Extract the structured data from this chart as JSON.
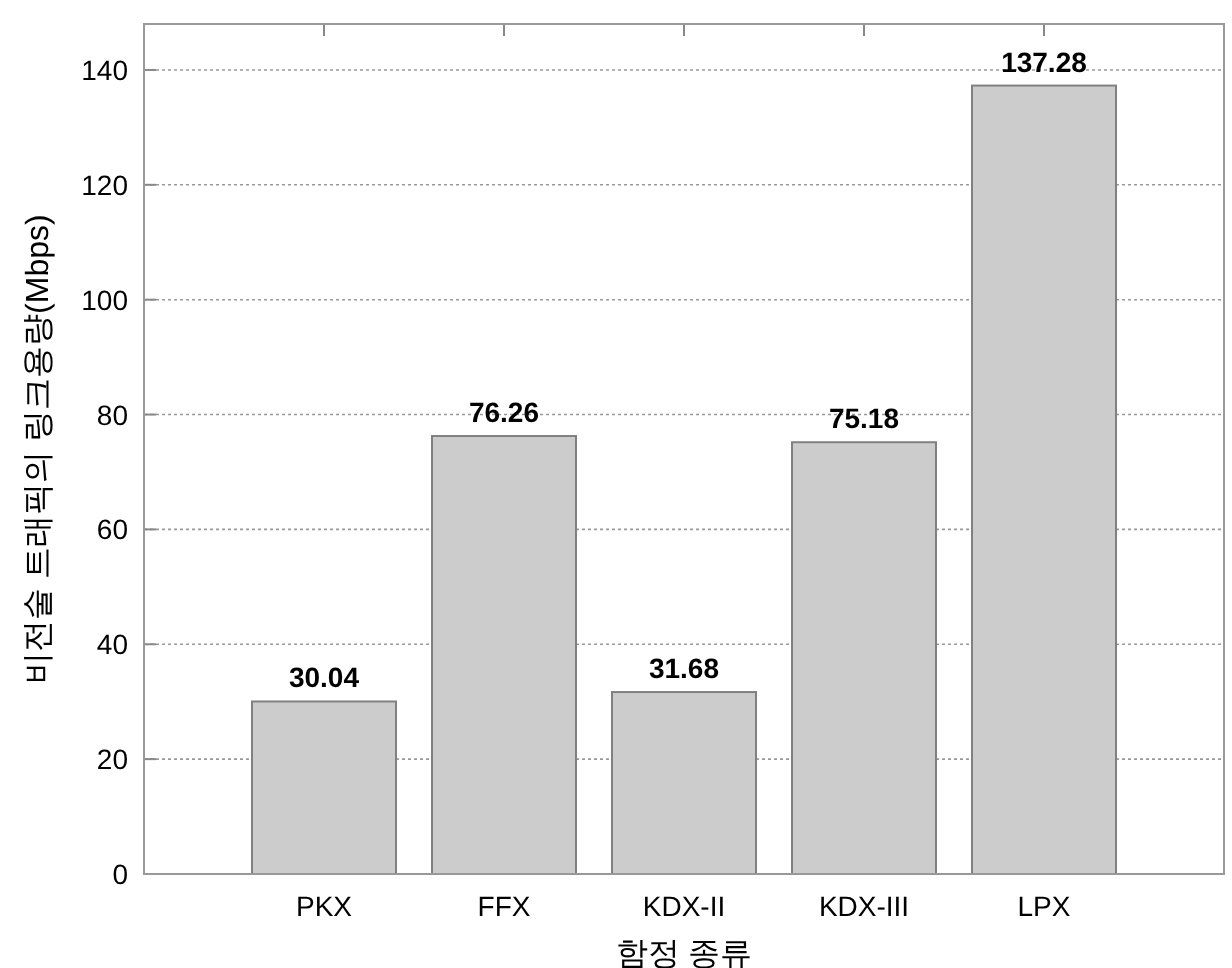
{
  "chart_data": {
    "type": "bar",
    "xlabel": "함정 종류",
    "ylabel": "비전술 트래픽의 링크용량(Mbps)",
    "categories": [
      "PKX",
      "FFX",
      "KDX-II",
      "KDX-III",
      "LPX"
    ],
    "values": [
      30.04,
      76.26,
      31.68,
      75.18,
      137.28
    ],
    "color": "#cccccc",
    "ylim": [
      0,
      148
    ],
    "yticks": [
      0,
      20,
      40,
      60,
      80,
      100,
      120,
      140
    ],
    "grid": "y",
    "data_labels": true
  }
}
